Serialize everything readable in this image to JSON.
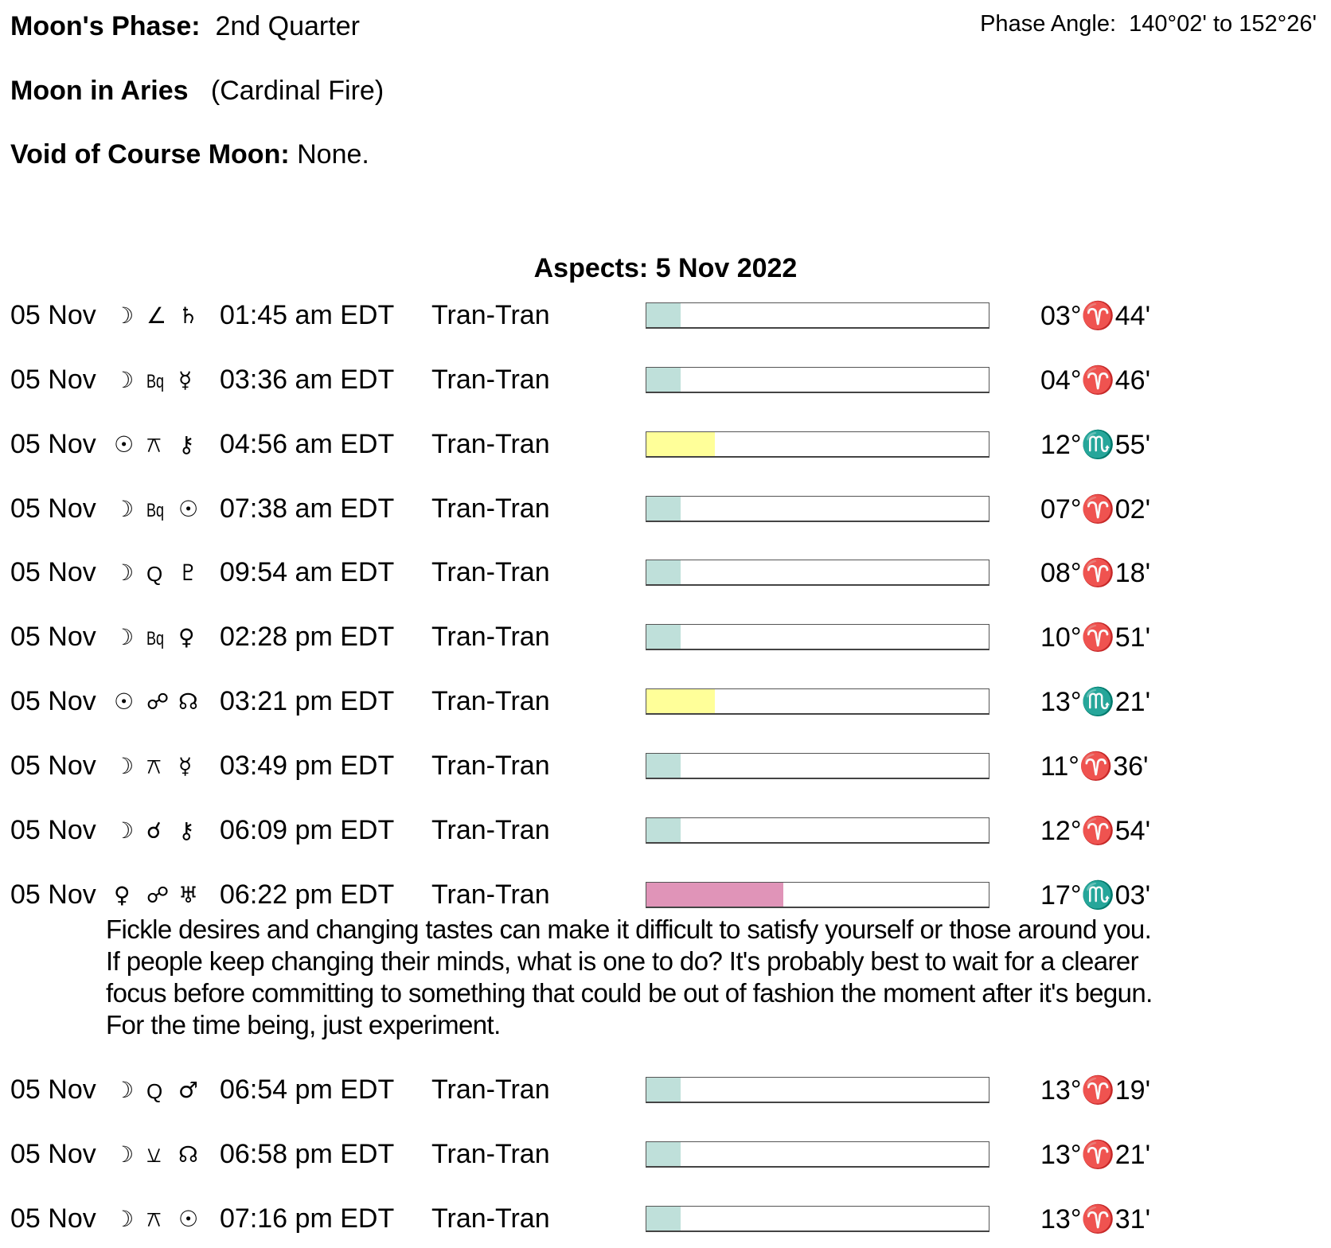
{
  "header": {
    "phase_label": "Moon's Phase:",
    "phase_value": "2nd Quarter",
    "phase_angle_label": "Phase Angle:",
    "phase_angle_value": "140°02' to 152°26'",
    "moon_sign_label": "Moon in Aries",
    "moon_sign_value": "(Cardinal Fire)",
    "voc_label": "Void of Course Moon:",
    "voc_value": "None."
  },
  "aspects_title": "Aspects: 5 Nov 2022",
  "colors": {
    "teal": "#bfe0da",
    "yellow": "#ffff99",
    "pink": "#e094b8"
  },
  "aspects": [
    {
      "date": "05 Nov",
      "p1": "☽",
      "asp": "∠",
      "p2": "♄",
      "p1_icon": "moon-icon",
      "asp_icon": "semisquare-icon",
      "p2_icon": "saturn-icon",
      "time": "01:45 am EDT",
      "type": "Tran-Tran",
      "strength": 10,
      "color": "teal",
      "pos": "03°♈44'"
    },
    {
      "date": "05 Nov",
      "p1": "☽",
      "asp": "Bq",
      "p2": "☿",
      "p1_icon": "moon-icon",
      "asp_icon": "biquintile-icon",
      "p2_icon": "mercury-icon",
      "time": "03:36 am EDT",
      "type": "Tran-Tran",
      "strength": 10,
      "color": "teal",
      "pos": "04°♈46'"
    },
    {
      "date": "05 Nov",
      "p1": "☉",
      "asp": "⚻",
      "p2": "⚷",
      "p1_icon": "sun-icon",
      "asp_icon": "quincunx-icon",
      "p2_icon": "chiron-icon",
      "time": "04:56 am EDT",
      "type": "Tran-Tran",
      "strength": 20,
      "color": "yellow",
      "pos": "12°♏55'"
    },
    {
      "date": "05 Nov",
      "p1": "☽",
      "asp": "Bq",
      "p2": "☉",
      "p1_icon": "moon-icon",
      "asp_icon": "biquintile-icon",
      "p2_icon": "sun-icon",
      "time": "07:38 am EDT",
      "type": "Tran-Tran",
      "strength": 10,
      "color": "teal",
      "pos": "07°♈02'"
    },
    {
      "date": "05 Nov",
      "p1": "☽",
      "asp": "Q",
      "p2": "♇",
      "p1_icon": "moon-icon",
      "asp_icon": "quintile-icon",
      "p2_icon": "pluto-icon",
      "time": "09:54 am EDT",
      "type": "Tran-Tran",
      "strength": 10,
      "color": "teal",
      "pos": "08°♈18'"
    },
    {
      "date": "05 Nov",
      "p1": "☽",
      "asp": "Bq",
      "p2": "♀",
      "p1_icon": "moon-icon",
      "asp_icon": "biquintile-icon",
      "p2_icon": "venus-icon",
      "time": "02:28 pm EDT",
      "type": "Tran-Tran",
      "strength": 10,
      "color": "teal",
      "pos": "10°♈51'"
    },
    {
      "date": "05 Nov",
      "p1": "☉",
      "asp": "☍",
      "p2": "☊",
      "p1_icon": "sun-icon",
      "asp_icon": "opposition-icon",
      "p2_icon": "north-node-icon",
      "time": "03:21 pm EDT",
      "type": "Tran-Tran",
      "strength": 20,
      "color": "yellow",
      "pos": "13°♏21'"
    },
    {
      "date": "05 Nov",
      "p1": "☽",
      "asp": "⚻",
      "p2": "☿",
      "p1_icon": "moon-icon",
      "asp_icon": "quincunx-icon",
      "p2_icon": "mercury-icon",
      "time": "03:49 pm EDT",
      "type": "Tran-Tran",
      "strength": 10,
      "color": "teal",
      "pos": "11°♈36'"
    },
    {
      "date": "05 Nov",
      "p1": "☽",
      "asp": "☌",
      "p2": "⚷",
      "p1_icon": "moon-icon",
      "asp_icon": "conjunction-icon",
      "p2_icon": "chiron-icon",
      "time": "06:09 pm EDT",
      "type": "Tran-Tran",
      "strength": 10,
      "color": "teal",
      "pos": "12°♈54'"
    },
    {
      "date": "05 Nov",
      "p1": "♀",
      "asp": "☍",
      "p2": "♅",
      "p1_icon": "venus-icon",
      "asp_icon": "opposition-icon",
      "p2_icon": "uranus-icon",
      "time": "06:22 pm EDT",
      "type": "Tran-Tran",
      "strength": 40,
      "color": "pink",
      "pos": "17°♏03'",
      "description": [
        "Fickle desires and changing tastes can make it difficult to satisfy yourself or those around you.",
        "If people keep changing their minds, what is one to do? It's probably best to wait for a clearer",
        "focus before committing to something that could be out of fashion the moment after it's begun.",
        "For the time being, just experiment."
      ]
    },
    {
      "date": "05 Nov",
      "p1": "☽",
      "asp": "Q",
      "p2": "♂",
      "p1_icon": "moon-icon",
      "asp_icon": "quintile-icon",
      "p2_icon": "mars-icon",
      "time": "06:54 pm EDT",
      "type": "Tran-Tran",
      "strength": 10,
      "color": "teal",
      "pos": "13°♈19'"
    },
    {
      "date": "05 Nov",
      "p1": "☽",
      "asp": "⚺",
      "p2": "☊",
      "p1_icon": "moon-icon",
      "asp_icon": "semisextile-icon",
      "p2_icon": "north-node-icon",
      "time": "06:58 pm EDT",
      "type": "Tran-Tran",
      "strength": 10,
      "color": "teal",
      "pos": "13°♈21'"
    },
    {
      "date": "05 Nov",
      "p1": "☽",
      "asp": "⚻",
      "p2": "☉",
      "p1_icon": "moon-icon",
      "asp_icon": "quincunx-icon",
      "p2_icon": "sun-icon",
      "time": "07:16 pm EDT",
      "type": "Tran-Tran",
      "strength": 10,
      "color": "teal",
      "pos": "13°♈31'"
    }
  ]
}
